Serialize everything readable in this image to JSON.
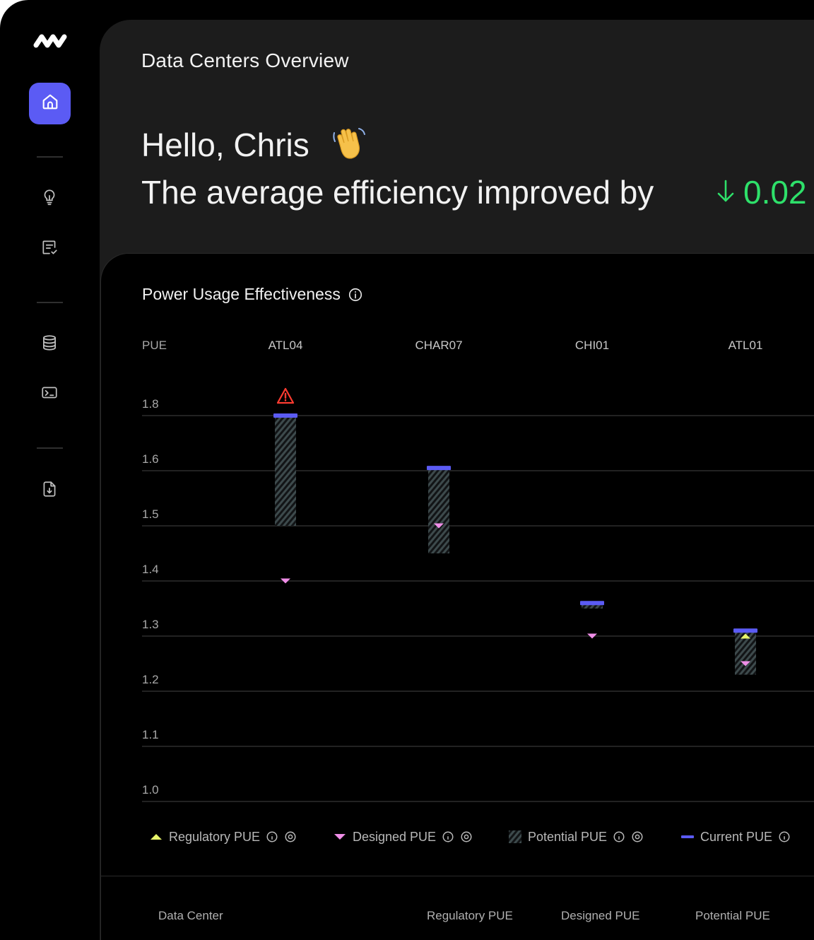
{
  "header": {
    "page_title": "Data Centers Overview",
    "greeting": "Hello, Chris",
    "efficiency_text": "The average efficiency improved by",
    "efficiency_value": "0.02",
    "efficiency_color": "#2ee06a"
  },
  "sidebar": {
    "active_color": "#5b5bf4",
    "items": [
      {
        "icon": "home-icon",
        "active": true
      },
      {
        "icon": "lightbulb-icon"
      },
      {
        "icon": "checklist-icon"
      },
      {
        "icon": "database-icon"
      },
      {
        "icon": "monitor-icon"
      },
      {
        "icon": "file-download-icon"
      }
    ]
  },
  "chart_card": {
    "title": "Power Usage Effectiveness"
  },
  "chart_data": {
    "type": "range-bar",
    "y_axis_label": "PUE",
    "y_ticks": [
      "1.0",
      "1.1",
      "1.2",
      "1.3",
      "1.4",
      "1.5",
      "1.6",
      "1.8"
    ],
    "y_tick_values": [
      1.0,
      1.1,
      1.2,
      1.3,
      1.4,
      1.5,
      1.6,
      1.8
    ],
    "grid": true,
    "categories": [
      "ATL04",
      "CHAR07",
      "CHI01",
      "ATL01"
    ],
    "series": [
      {
        "name": "Regulatory PUE",
        "color": "#e8f56a",
        "marker": "triangle-up",
        "values": [
          null,
          null,
          null,
          1.3
        ]
      },
      {
        "name": "Designed PUE",
        "color": "#f08ee8",
        "marker": "triangle-down",
        "values": [
          1.4,
          1.5,
          1.3,
          1.25
        ]
      },
      {
        "name": "Potential PUE",
        "color": "#3d4a4c",
        "marker": "hatched-range",
        "ranges": [
          [
            1.5,
            1.8
          ],
          [
            1.45,
            1.61
          ],
          [
            1.35,
            1.36
          ],
          [
            1.23,
            1.31
          ]
        ]
      },
      {
        "name": "Current PUE",
        "color": "#5b5bf4",
        "marker": "line",
        "values": [
          1.8,
          1.61,
          1.36,
          1.31
        ]
      }
    ],
    "warnings": [
      "ATL04"
    ],
    "warning_color": "#ff3b30"
  },
  "table": {
    "headers": [
      "Data Center",
      "Regulatory PUE",
      "Designed PUE",
      "Potential PUE"
    ]
  }
}
